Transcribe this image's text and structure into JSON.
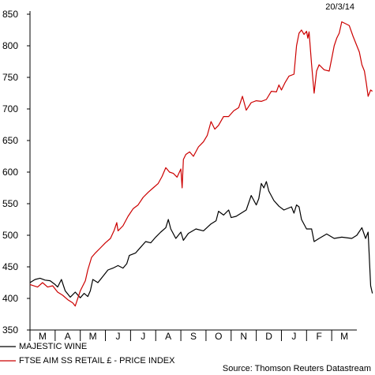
{
  "chart_data": {
    "type": "line",
    "date_stamp": "20/3/14",
    "source": "Source: Thomson Reuters Datastream",
    "ylim": [
      350,
      850
    ],
    "yticks": [
      350,
      400,
      450,
      500,
      550,
      600,
      650,
      700,
      750,
      800,
      850
    ],
    "months": [
      "M",
      "A",
      "M",
      "J",
      "J",
      "A",
      "S",
      "O",
      "N",
      "D",
      "J",
      "F",
      "M"
    ],
    "grid": false,
    "legend_position": "bottom-left",
    "series": [
      {
        "name": "MAJESTIC WINE",
        "color": "#000000",
        "points": [
          [
            0.0,
            425
          ],
          [
            0.2,
            430
          ],
          [
            0.4,
            432
          ],
          [
            0.6,
            429
          ],
          [
            0.8,
            428
          ],
          [
            1.0,
            422
          ],
          [
            1.1,
            418
          ],
          [
            1.25,
            430
          ],
          [
            1.4,
            412
          ],
          [
            1.6,
            402
          ],
          [
            1.8,
            410
          ],
          [
            2.0,
            401
          ],
          [
            2.15,
            408
          ],
          [
            2.3,
            403
          ],
          [
            2.4,
            412
          ],
          [
            2.5,
            430
          ],
          [
            2.7,
            425
          ],
          [
            2.9,
            435
          ],
          [
            3.1,
            445
          ],
          [
            3.3,
            448
          ],
          [
            3.5,
            452
          ],
          [
            3.7,
            448
          ],
          [
            3.85,
            455
          ],
          [
            3.95,
            468
          ],
          [
            4.2,
            472
          ],
          [
            4.4,
            481
          ],
          [
            4.6,
            490
          ],
          [
            4.8,
            488
          ],
          [
            5.0,
            497
          ],
          [
            5.2,
            505
          ],
          [
            5.4,
            512
          ],
          [
            5.5,
            525
          ],
          [
            5.6,
            510
          ],
          [
            5.8,
            495
          ],
          [
            6.0,
            505
          ],
          [
            6.1,
            492
          ],
          [
            6.3,
            503
          ],
          [
            6.6,
            510
          ],
          [
            6.9,
            507
          ],
          [
            7.2,
            518
          ],
          [
            7.4,
            523
          ],
          [
            7.5,
            538
          ],
          [
            7.7,
            532
          ],
          [
            7.9,
            540
          ],
          [
            8.0,
            528
          ],
          [
            8.2,
            530
          ],
          [
            8.4,
            535
          ],
          [
            8.6,
            540
          ],
          [
            8.8,
            563
          ],
          [
            9.0,
            548
          ],
          [
            9.1,
            558
          ],
          [
            9.2,
            582
          ],
          [
            9.3,
            575
          ],
          [
            9.4,
            585
          ],
          [
            9.5,
            570
          ],
          [
            9.7,
            555
          ],
          [
            9.9,
            546
          ],
          [
            10.1,
            540
          ],
          [
            10.4,
            545
          ],
          [
            10.5,
            535
          ],
          [
            10.6,
            548
          ],
          [
            10.7,
            545
          ],
          [
            10.8,
            525
          ],
          [
            11.0,
            510
          ],
          [
            11.2,
            510
          ],
          [
            11.3,
            490
          ],
          [
            11.5,
            495
          ],
          [
            11.8,
            502
          ],
          [
            12.1,
            495
          ],
          [
            12.4,
            497
          ],
          [
            12.8,
            495
          ],
          [
            13.0,
            500
          ],
          [
            13.2,
            512
          ],
          [
            13.35,
            495
          ],
          [
            13.45,
            505
          ],
          [
            13.55,
            420
          ],
          [
            13.62,
            408
          ]
        ]
      },
      {
        "name": "FTSE AIM SS RETAIL £ - PRICE INDEX",
        "color": "#cc0000",
        "points": [
          [
            0.0,
            422
          ],
          [
            0.3,
            418
          ],
          [
            0.5,
            425
          ],
          [
            0.7,
            418
          ],
          [
            0.9,
            420
          ],
          [
            1.1,
            410
          ],
          [
            1.3,
            405
          ],
          [
            1.5,
            398
          ],
          [
            1.7,
            393
          ],
          [
            1.8,
            388
          ],
          [
            1.9,
            400
          ],
          [
            2.0,
            412
          ],
          [
            2.1,
            420
          ],
          [
            2.2,
            428
          ],
          [
            2.3,
            445
          ],
          [
            2.45,
            465
          ],
          [
            2.6,
            472
          ],
          [
            2.8,
            480
          ],
          [
            3.0,
            488
          ],
          [
            3.2,
            495
          ],
          [
            3.35,
            508
          ],
          [
            3.45,
            520
          ],
          [
            3.5,
            507
          ],
          [
            3.7,
            515
          ],
          [
            3.9,
            530
          ],
          [
            4.1,
            542
          ],
          [
            4.3,
            548
          ],
          [
            4.5,
            560
          ],
          [
            4.7,
            568
          ],
          [
            4.9,
            575
          ],
          [
            5.1,
            582
          ],
          [
            5.25,
            593
          ],
          [
            5.4,
            607
          ],
          [
            5.55,
            600
          ],
          [
            5.7,
            598
          ],
          [
            5.85,
            592
          ],
          [
            6.0,
            605
          ],
          [
            6.05,
            575
          ],
          [
            6.1,
            620
          ],
          [
            6.2,
            628
          ],
          [
            6.35,
            632
          ],
          [
            6.5,
            625
          ],
          [
            6.7,
            640
          ],
          [
            6.9,
            648
          ],
          [
            7.05,
            658
          ],
          [
            7.2,
            680
          ],
          [
            7.35,
            668
          ],
          [
            7.5,
            674
          ],
          [
            7.7,
            688
          ],
          [
            7.9,
            688
          ],
          [
            8.1,
            697
          ],
          [
            8.3,
            702
          ],
          [
            8.45,
            720
          ],
          [
            8.6,
            698
          ],
          [
            8.8,
            710
          ],
          [
            9.0,
            713
          ],
          [
            9.2,
            712
          ],
          [
            9.4,
            715
          ],
          [
            9.6,
            728
          ],
          [
            9.8,
            727
          ],
          [
            9.9,
            738
          ],
          [
            10.0,
            730
          ],
          [
            10.15,
            742
          ],
          [
            10.3,
            752
          ],
          [
            10.5,
            755
          ],
          [
            10.6,
            800
          ],
          [
            10.7,
            820
          ],
          [
            10.8,
            825
          ],
          [
            10.9,
            818
          ],
          [
            11.0,
            823
          ],
          [
            11.05,
            812
          ],
          [
            11.1,
            822
          ],
          [
            11.2,
            770
          ],
          [
            11.3,
            725
          ],
          [
            11.4,
            760
          ],
          [
            11.5,
            770
          ],
          [
            11.7,
            762
          ],
          [
            11.9,
            760
          ],
          [
            12.0,
            780
          ],
          [
            12.1,
            800
          ],
          [
            12.2,
            812
          ],
          [
            12.3,
            820
          ],
          [
            12.4,
            838
          ],
          [
            12.55,
            835
          ],
          [
            12.7,
            832
          ],
          [
            12.85,
            815
          ],
          [
            13.0,
            800
          ],
          [
            13.1,
            790
          ],
          [
            13.2,
            770
          ],
          [
            13.3,
            760
          ],
          [
            13.38,
            740
          ],
          [
            13.45,
            720
          ],
          [
            13.55,
            730
          ],
          [
            13.62,
            728
          ]
        ]
      }
    ]
  }
}
